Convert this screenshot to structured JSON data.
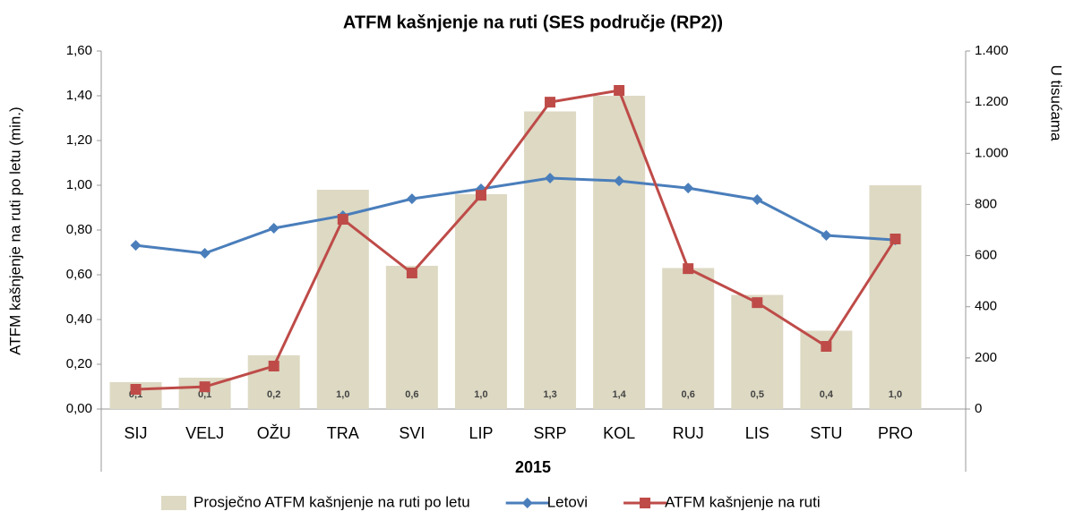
{
  "chart_data": {
    "type": "bar-line",
    "title": "ATFM kašnjenje na ruti (SES područje (RP2))",
    "x_label": "2015",
    "y_label": "ATFM kašnjenje na ruti po letu (min.)",
    "y2_label": "U tisućama",
    "categories": [
      "SIJ",
      "VELJ",
      "OŽU",
      "TRA",
      "SVI",
      "LIP",
      "SRP",
      "KOL",
      "RUJ",
      "LIS",
      "STU",
      "PRO"
    ],
    "ylim": [
      0,
      1.6
    ],
    "yticks": [
      {
        "value": 0,
        "label": "0,00"
      },
      {
        "value": 0.2,
        "label": "0,20"
      },
      {
        "value": 0.4,
        "label": "0,40"
      },
      {
        "value": 0.6,
        "label": "0,60"
      },
      {
        "value": 0.8,
        "label": "0,80"
      },
      {
        "value": 1.0,
        "label": "1,00"
      },
      {
        "value": 1.2,
        "label": "1,20"
      },
      {
        "value": 1.4,
        "label": "1,40"
      },
      {
        "value": 1.6,
        "label": "1,60"
      }
    ],
    "y2lim": [
      0,
      1400
    ],
    "y2ticks": [
      0,
      200,
      400,
      600,
      800,
      {
        "value": 1000,
        "label": "1.000"
      },
      {
        "value": 1200,
        "label": "1.200"
      },
      {
        "value": 1400,
        "label": "1.400"
      }
    ],
    "legend": "bottom",
    "series": [
      {
        "name": "Prosječno ATFM kašnjenje na ruti po letu",
        "kind": "bar",
        "color": "#ddd9c3",
        "values": [
          0.12,
          0.14,
          0.24,
          0.98,
          0.64,
          0.96,
          1.33,
          1.4,
          0.63,
          0.51,
          0.35,
          1.0
        ],
        "value_labels": [
          "0,1",
          "0,1",
          "0,2",
          "1,0",
          "0,6",
          "1,0",
          "1,3",
          "1,4",
          "0,6",
          "0,5",
          "0,4",
          "1,0"
        ]
      },
      {
        "name": "Letovi",
        "kind": "line",
        "marker": "diamond",
        "axis": "y2",
        "color": "#4a7ebb",
        "values": [
          640,
          609,
          707,
          756,
          822,
          861,
          903,
          892,
          864,
          819,
          679,
          661
        ]
      },
      {
        "name": "ATFM kašnjenje na ruti",
        "kind": "line",
        "marker": "square",
        "axis": "y2",
        "color": "#be4b48",
        "values": [
          77,
          87,
          168,
          742,
          532,
          836,
          1200,
          1246,
          549,
          416,
          245,
          665
        ]
      }
    ]
  }
}
